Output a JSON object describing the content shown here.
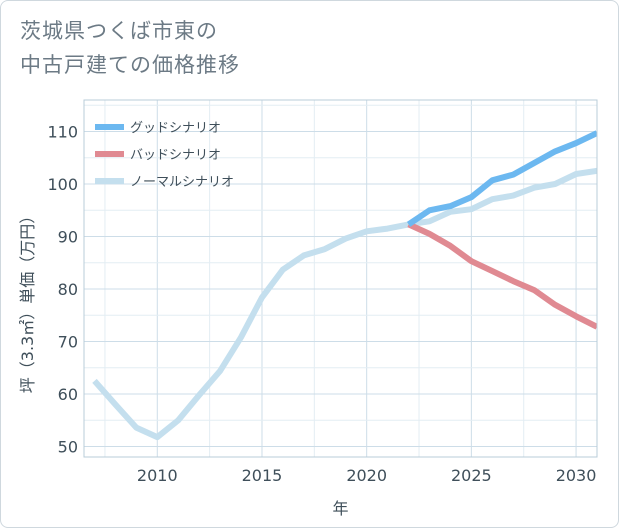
{
  "title": {
    "line1": "茨城県つくば市東の",
    "line2": "中古戸建ての価格推移"
  },
  "chart_data": {
    "type": "line",
    "xlabel": "年",
    "ylabel": "坪（3.3㎡）単価（万円）",
    "xlim": [
      2006.5,
      2031
    ],
    "ylim": [
      48,
      116
    ],
    "x_ticks": [
      2010,
      2015,
      2020,
      2025,
      2030
    ],
    "y_ticks": [
      50,
      60,
      70,
      80,
      90,
      100,
      110
    ],
    "x_tick_labels": [
      "2010",
      "2015",
      "2020",
      "2025",
      "2030"
    ],
    "y_tick_labels": [
      "50",
      "60",
      "70",
      "80",
      "90",
      "100",
      "110"
    ],
    "grid": true,
    "legend_position": "top-left",
    "series": [
      {
        "name": "グッドシナリオ",
        "color": "#6cb8f0",
        "x": [
          2022,
          2023,
          2024,
          2025,
          2026,
          2027,
          2028,
          2029,
          2030,
          2031
        ],
        "y": [
          92.3,
          95.0,
          95.8,
          97.5,
          100.7,
          101.8,
          104.0,
          106.2,
          107.8,
          109.7
        ]
      },
      {
        "name": "バッドシナリオ",
        "color": "#e08a92",
        "x": [
          2022,
          2023,
          2024,
          2025,
          2026,
          2027,
          2028,
          2029,
          2030,
          2031
        ],
        "y": [
          92.3,
          90.5,
          88.2,
          85.3,
          83.4,
          81.5,
          79.8,
          77.0,
          74.8,
          72.8
        ]
      },
      {
        "name": "ノーマルシナリオ",
        "color": "#c4dfee",
        "x": [
          2007,
          2008,
          2009,
          2010,
          2011,
          2012,
          2013,
          2014,
          2015,
          2016,
          2017,
          2018,
          2019,
          2020,
          2021,
          2022,
          2023,
          2024,
          2025,
          2026,
          2027,
          2028,
          2029,
          2030,
          2031
        ],
        "y": [
          62.5,
          58.0,
          53.6,
          51.8,
          55.0,
          59.8,
          64.4,
          70.8,
          78.4,
          83.7,
          86.4,
          87.6,
          89.6,
          91.0,
          91.5,
          92.3,
          92.9,
          94.7,
          95.2,
          97.1,
          97.8,
          99.3,
          100.0,
          101.9,
          102.5
        ]
      }
    ]
  }
}
